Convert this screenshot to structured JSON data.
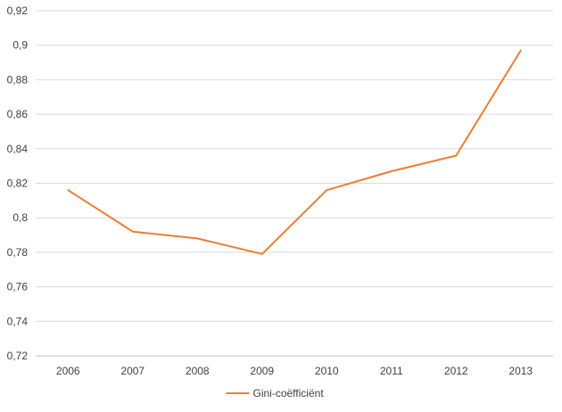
{
  "chart_data": {
    "type": "line",
    "title": "",
    "xlabel": "",
    "ylabel": "",
    "categories": [
      "2006",
      "2007",
      "2008",
      "2009",
      "2010",
      "2011",
      "2012",
      "2013"
    ],
    "series": [
      {
        "name": "Gini-coëfficiënt",
        "color": "#ED7D31",
        "values": [
          0.816,
          0.792,
          0.788,
          0.779,
          0.816,
          0.827,
          0.836,
          0.897
        ]
      }
    ],
    "ylim": [
      0.72,
      0.92
    ],
    "yticks": [
      "0,72",
      "0,74",
      "0,76",
      "0,78",
      "0,8",
      "0,82",
      "0,84",
      "0,86",
      "0,88",
      "0,9",
      "0,92"
    ],
    "grid": true,
    "legend": "bottom"
  }
}
